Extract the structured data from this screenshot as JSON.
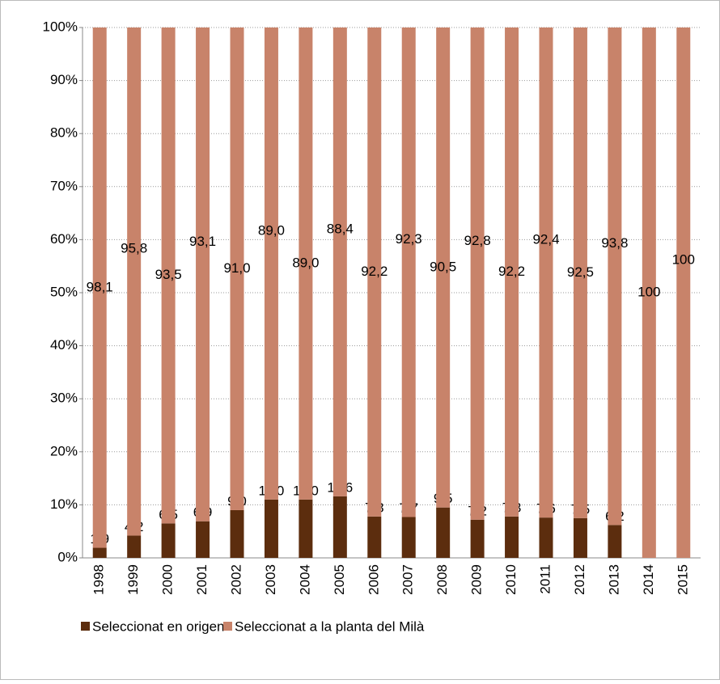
{
  "chart_data": {
    "type": "stacked_bar_100",
    "categories": [
      "1998",
      "1999",
      "2000",
      "2001",
      "2002",
      "2003",
      "2004",
      "2005",
      "2006",
      "2007",
      "2008",
      "2009",
      "2010",
      "2011",
      "2012",
      "2013",
      "2014",
      "2015"
    ],
    "series": [
      {
        "name": "Seleccionat en origen",
        "color": "#5c2d0e",
        "values": [
          1.9,
          4.2,
          6.5,
          6.9,
          9.0,
          11.0,
          11.0,
          11.6,
          7.8,
          7.7,
          9.5,
          7.2,
          7.8,
          7.6,
          7.5,
          6.2,
          0,
          0
        ],
        "value_labels": [
          "1,9",
          "4,2",
          "6,5",
          "6,9",
          "9.0",
          "11.0",
          "11,0",
          "11,6",
          "7,8",
          "7,7",
          "9,5",
          "7,2",
          "7,8",
          "7,6",
          "7,5",
          "6,2",
          null,
          null
        ]
      },
      {
        "name": "Seleccionat a la planta del Milà",
        "color": "#c8836a",
        "values": [
          98.1,
          95.8,
          93.5,
          93.1,
          91.0,
          89.0,
          89.0,
          88.4,
          92.2,
          92.3,
          90.5,
          92.8,
          92.2,
          92.4,
          92.5,
          93.8,
          100,
          100
        ],
        "value_labels": [
          "98,1",
          "95,8",
          "93,5",
          "93,1",
          "91,0",
          "89,0",
          "89,0",
          "88,4",
          "92,2",
          "92,3",
          "90,5",
          "92,8",
          "92,2",
          "92,4",
          "92,5",
          "93,8",
          "100",
          "100"
        ]
      }
    ],
    "ylim": [
      0,
      100
    ],
    "yticks": [
      {
        "value": 0,
        "label": "0%"
      },
      {
        "value": 10,
        "label": "10%"
      },
      {
        "value": 20,
        "label": "20%"
      },
      {
        "value": 30,
        "label": "30%"
      },
      {
        "value": 40,
        "label": "40%"
      },
      {
        "value": 50,
        "label": "50%"
      },
      {
        "value": 60,
        "label": "60%"
      },
      {
        "value": 70,
        "label": "70%"
      },
      {
        "value": 80,
        "label": "80%"
      },
      {
        "value": 90,
        "label": "90%"
      },
      {
        "value": 100,
        "label": "100%"
      }
    ],
    "grid": true,
    "legend": "bottom"
  }
}
